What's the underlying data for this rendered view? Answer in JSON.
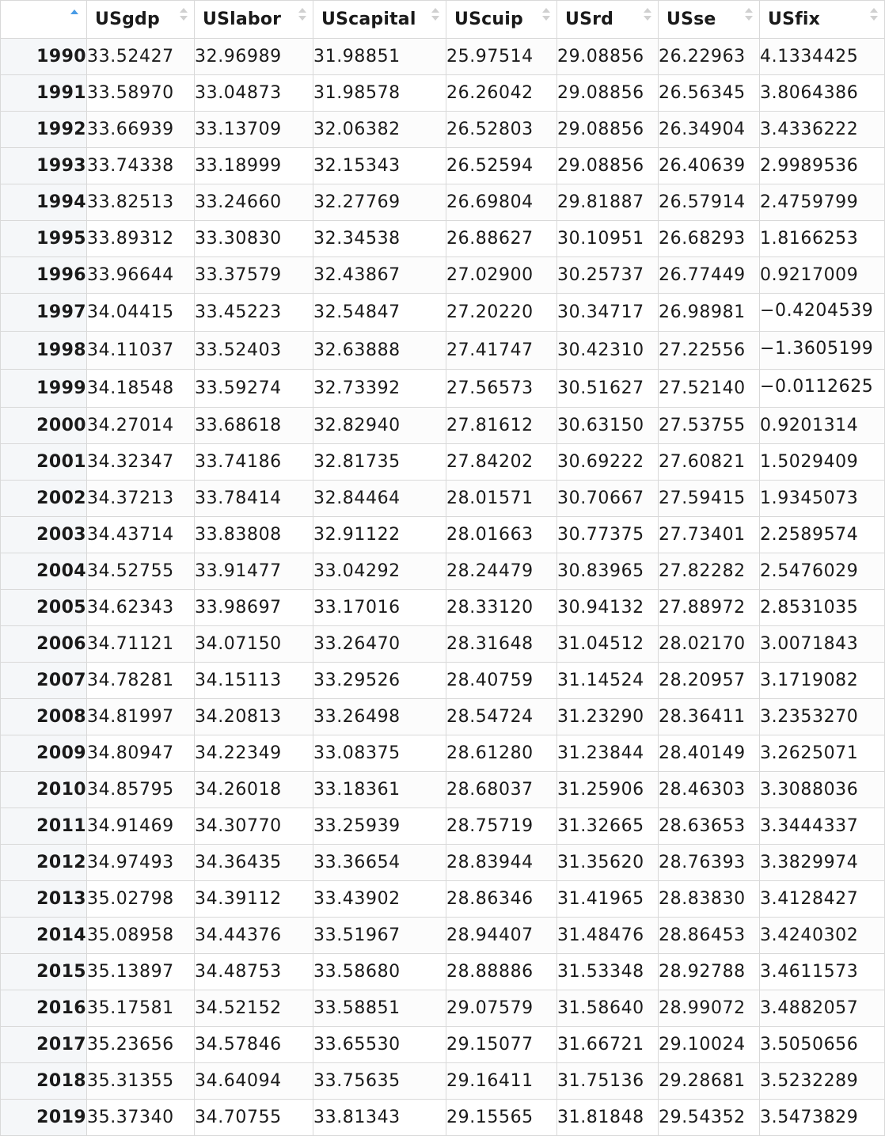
{
  "table": {
    "columns": [
      {
        "name": "",
        "sort": "ascending"
      },
      {
        "name": "USgdp",
        "sort": "none"
      },
      {
        "name": "USlabor",
        "sort": "none"
      },
      {
        "name": "UScapital",
        "sort": "none"
      },
      {
        "name": "UScuip",
        "sort": "none"
      },
      {
        "name": "USrd",
        "sort": "none"
      },
      {
        "name": "USse",
        "sort": "none"
      },
      {
        "name": "USfix",
        "sort": "none"
      }
    ],
    "rows": [
      [
        "1990",
        "33.52427",
        "32.96989",
        "31.98851",
        "25.97514",
        "29.08856",
        "26.22963",
        "4.1334425"
      ],
      [
        "1991",
        "33.58970",
        "33.04873",
        "31.98578",
        "26.26042",
        "29.08856",
        "26.56345",
        "3.8064386"
      ],
      [
        "1992",
        "33.66939",
        "33.13709",
        "32.06382",
        "26.52803",
        "29.08856",
        "26.34904",
        "3.4336222"
      ],
      [
        "1993",
        "33.74338",
        "33.18999",
        "32.15343",
        "26.52594",
        "29.08856",
        "26.40639",
        "2.9989536"
      ],
      [
        "1994",
        "33.82513",
        "33.24660",
        "32.27769",
        "26.69804",
        "29.81887",
        "26.57914",
        "2.4759799"
      ],
      [
        "1995",
        "33.89312",
        "33.30830",
        "32.34538",
        "26.88627",
        "30.10951",
        "26.68293",
        "1.8166253"
      ],
      [
        "1996",
        "33.96644",
        "33.37579",
        "32.43867",
        "27.02900",
        "30.25737",
        "26.77449",
        "0.9217009"
      ],
      [
        "1997",
        "34.04415",
        "33.45223",
        "32.54847",
        "27.20220",
        "30.34717",
        "26.98981",
        "−0.4204539"
      ],
      [
        "1998",
        "34.11037",
        "33.52403",
        "32.63888",
        "27.41747",
        "30.42310",
        "27.22556",
        "−1.3605199"
      ],
      [
        "1999",
        "34.18548",
        "33.59274",
        "32.73392",
        "27.56573",
        "30.51627",
        "27.52140",
        "−0.0112625"
      ],
      [
        "2000",
        "34.27014",
        "33.68618",
        "32.82940",
        "27.81612",
        "30.63150",
        "27.53755",
        "0.9201314"
      ],
      [
        "2001",
        "34.32347",
        "33.74186",
        "32.81735",
        "27.84202",
        "30.69222",
        "27.60821",
        "1.5029409"
      ],
      [
        "2002",
        "34.37213",
        "33.78414",
        "32.84464",
        "28.01571",
        "30.70667",
        "27.59415",
        "1.9345073"
      ],
      [
        "2003",
        "34.43714",
        "33.83808",
        "32.91122",
        "28.01663",
        "30.77375",
        "27.73401",
        "2.2589574"
      ],
      [
        "2004",
        "34.52755",
        "33.91477",
        "33.04292",
        "28.24479",
        "30.83965",
        "27.82282",
        "2.5476029"
      ],
      [
        "2005",
        "34.62343",
        "33.98697",
        "33.17016",
        "28.33120",
        "30.94132",
        "27.88972",
        "2.8531035"
      ],
      [
        "2006",
        "34.71121",
        "34.07150",
        "33.26470",
        "28.31648",
        "31.04512",
        "28.02170",
        "3.0071843"
      ],
      [
        "2007",
        "34.78281",
        "34.15113",
        "33.29526",
        "28.40759",
        "31.14524",
        "28.20957",
        "3.1719082"
      ],
      [
        "2008",
        "34.81997",
        "34.20813",
        "33.26498",
        "28.54724",
        "31.23290",
        "28.36411",
        "3.2353270"
      ],
      [
        "2009",
        "34.80947",
        "34.22349",
        "33.08375",
        "28.61280",
        "31.23844",
        "28.40149",
        "3.2625071"
      ],
      [
        "2010",
        "34.85795",
        "34.26018",
        "33.18361",
        "28.68037",
        "31.25906",
        "28.46303",
        "3.3088036"
      ],
      [
        "2011",
        "34.91469",
        "34.30770",
        "33.25939",
        "28.75719",
        "31.32665",
        "28.63653",
        "3.3444337"
      ],
      [
        "2012",
        "34.97493",
        "34.36435",
        "33.36654",
        "28.83944",
        "31.35620",
        "28.76393",
        "3.3829974"
      ],
      [
        "2013",
        "35.02798",
        "34.39112",
        "33.43902",
        "28.86346",
        "31.41965",
        "28.83830",
        "3.4128427"
      ],
      [
        "2014",
        "35.08958",
        "34.44376",
        "33.51967",
        "28.94407",
        "31.48476",
        "28.86453",
        "3.4240302"
      ],
      [
        "2015",
        "35.13897",
        "34.48753",
        "33.58680",
        "28.88886",
        "31.53348",
        "28.92788",
        "3.4611573"
      ],
      [
        "2016",
        "35.17581",
        "34.52152",
        "33.58851",
        "29.07579",
        "31.58640",
        "28.99072",
        "3.4882057"
      ],
      [
        "2017",
        "35.23656",
        "34.57846",
        "33.65530",
        "29.15077",
        "31.66721",
        "29.10024",
        "3.5050656"
      ],
      [
        "2018",
        "35.31355",
        "34.64094",
        "33.75635",
        "29.16411",
        "31.75136",
        "29.28681",
        "3.5232289"
      ],
      [
        "2019",
        "35.37340",
        "34.70755",
        "33.81343",
        "29.15565",
        "31.81848",
        "29.54352",
        "3.5473829"
      ]
    ]
  },
  "colors": {
    "sort_active": "#4a9ce6",
    "sort_inactive": "#d0d0d0",
    "rowname_bg": "#f5f7f9",
    "border": "#d9d9d9"
  }
}
